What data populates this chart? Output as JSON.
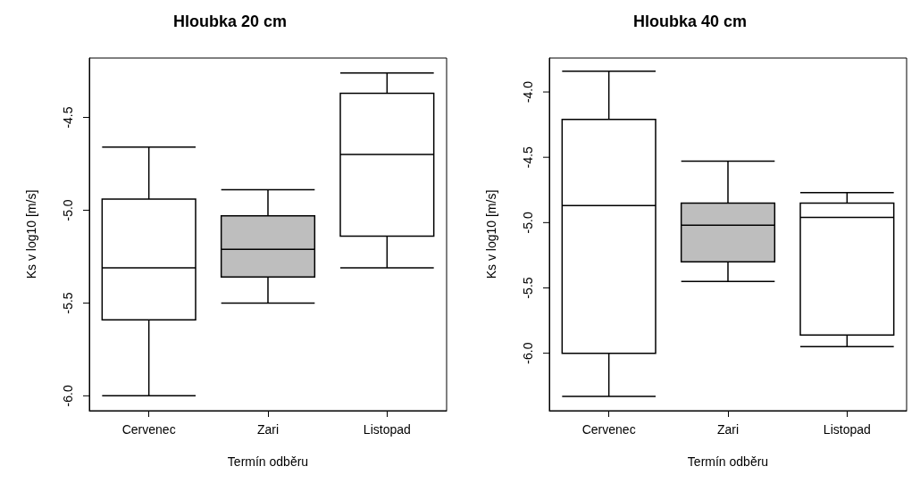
{
  "chart_data": [
    {
      "type": "box",
      "title": "Hloubka 20 cm",
      "xlabel": "Termín odběru",
      "ylabel": "Ks v log10 [m/s]",
      "categories": [
        "Cervenec",
        "Zari",
        "Listopad"
      ],
      "colors": [
        "#ffffff",
        "#bebebe",
        "#ffffff"
      ],
      "boxes": [
        {
          "low": -6.0,
          "q1": -5.59,
          "median": -5.31,
          "q3": -4.94,
          "high": -4.66
        },
        {
          "low": -5.5,
          "q1": -5.36,
          "median": -5.21,
          "q3": -5.03,
          "high": -4.89
        },
        {
          "low": -5.31,
          "q1": -5.14,
          "median": -4.7,
          "q3": -4.37,
          "high": -4.26
        }
      ],
      "ylim": [
        -6.08,
        -4.18
      ],
      "yticks": [
        {
          "value": -6,
          "label": "-6.0"
        },
        {
          "value": -5.5,
          "label": "-5.5"
        },
        {
          "value": -5,
          "label": "-5.0"
        },
        {
          "value": -4.5,
          "label": "-4.5"
        }
      ],
      "grid": false
    },
    {
      "type": "box",
      "title": "Hloubka 40 cm",
      "xlabel": "Termín odběru",
      "ylabel": "Ks v log10 [m/s]",
      "categories": [
        "Cervenec",
        "Zari",
        "Listopad"
      ],
      "colors": [
        "#ffffff",
        "#bebebe",
        "#ffffff"
      ],
      "boxes": [
        {
          "low": -6.33,
          "q1": -6.0,
          "median": -4.87,
          "q3": -4.21,
          "high": -3.84
        },
        {
          "low": -5.45,
          "q1": -5.3,
          "median": -5.02,
          "q3": -4.85,
          "high": -4.53
        },
        {
          "low": -5.95,
          "q1": -5.86,
          "median": -4.96,
          "q3": -4.85,
          "high": -4.77
        }
      ],
      "ylim": [
        -6.44,
        -3.74
      ],
      "yticks": [
        {
          "value": -6,
          "label": "-6.0"
        },
        {
          "value": -5.5,
          "label": "-5.5"
        },
        {
          "value": -5,
          "label": "-5.0"
        },
        {
          "value": -4.5,
          "label": "-4.5"
        },
        {
          "value": -4,
          "label": "-4.0"
        }
      ],
      "grid": false
    }
  ]
}
